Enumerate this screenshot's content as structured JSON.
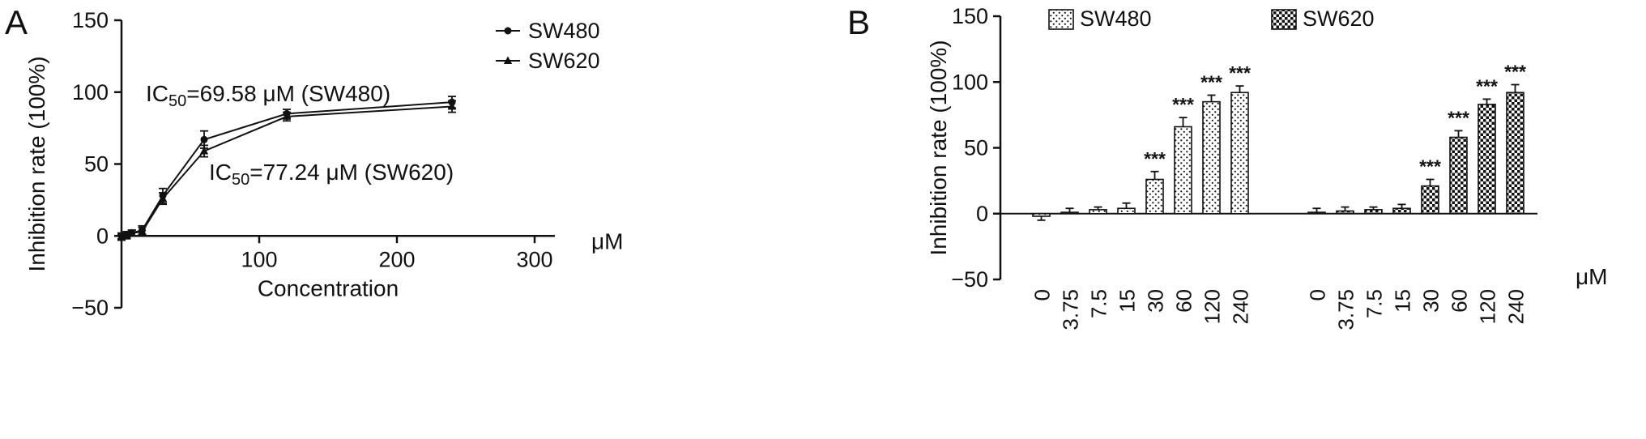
{
  "figure": {
    "panels": [
      {
        "label": "A"
      },
      {
        "label": "B"
      }
    ]
  },
  "chart_data": [
    {
      "type": "line",
      "panel": "A",
      "title": "",
      "xlabel": "Concentration",
      "ylabel": "Inhibition rate (100%)",
      "x_unit": "μM",
      "xlim": [
        0,
        300
      ],
      "ylim": [
        -50,
        150
      ],
      "xticks": [
        100,
        200,
        300
      ],
      "yticks": [
        -50,
        0,
        50,
        100,
        150
      ],
      "grid": false,
      "legend_position": "top-right",
      "x": [
        0,
        3.75,
        7.5,
        15,
        30,
        60,
        120,
        240
      ],
      "series": [
        {
          "name": "SW480",
          "marker": "circle",
          "values": [
            0,
            1,
            2,
            4,
            28,
            67,
            85,
            93
          ],
          "errors": [
            2,
            2,
            2,
            3,
            5,
            6,
            3,
            4
          ]
        },
        {
          "name": "SW620",
          "marker": "triangle",
          "values": [
            -1,
            0,
            2,
            3,
            26,
            59,
            83,
            90
          ],
          "errors": [
            2,
            2,
            2,
            3,
            4,
            4,
            3,
            4
          ]
        }
      ],
      "annotations": [
        {
          "prefix": "IC",
          "sub": "50",
          "rest": "=69.58 μM (SW480)"
        },
        {
          "prefix": "IC",
          "sub": "50",
          "rest": "=77.24 μM (SW620)"
        }
      ]
    },
    {
      "type": "bar",
      "panel": "B",
      "title": "",
      "xlabel": "",
      "ylabel": "Inhibition rate (100%)",
      "x_unit": "μM",
      "ylim": [
        -50,
        150
      ],
      "yticks": [
        -50,
        0,
        50,
        100,
        150
      ],
      "grid": false,
      "legend_position": "top",
      "categories": [
        "0",
        "3.75",
        "7.5",
        "15",
        "30",
        "60",
        "120",
        "240"
      ],
      "series": [
        {
          "name": "SW480",
          "pattern": "dots",
          "values": [
            -2,
            1,
            3,
            4,
            26,
            66,
            85,
            92
          ],
          "errors": [
            3,
            3,
            2,
            4,
            6,
            7,
            5,
            5
          ],
          "sig": [
            "",
            "",
            "",
            "",
            "***",
            "***",
            "***",
            "***"
          ]
        },
        {
          "name": "SW620",
          "pattern": "checker",
          "values": [
            1,
            2,
            3,
            4,
            21,
            58,
            83,
            92
          ],
          "errors": [
            3,
            3,
            2,
            3,
            5,
            5,
            4,
            6
          ],
          "sig": [
            "",
            "",
            "",
            "",
            "***",
            "***",
            "***",
            "***"
          ]
        }
      ]
    }
  ]
}
